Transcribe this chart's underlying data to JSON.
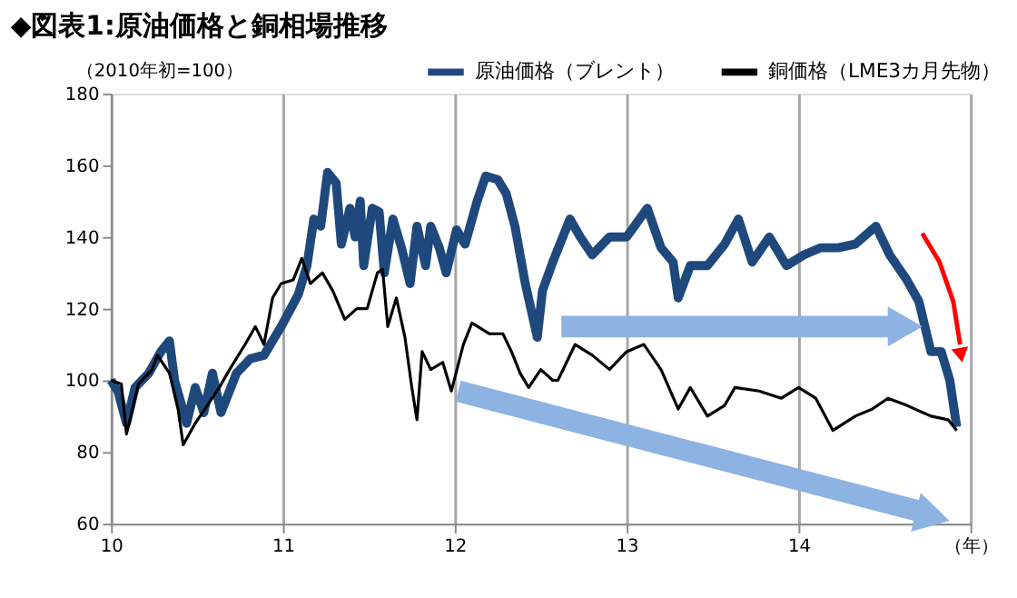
{
  "chart_data": {
    "type": "line",
    "title": "◆図表1:原油価格と銅相場推移",
    "ylabel": "（2010年初=100）",
    "xlim": [
      10,
      15
    ],
    "xticks": [
      10,
      11,
      12,
      13,
      14,
      {
        "value": 15,
        "label": "（年）"
      }
    ],
    "ylim": [
      60,
      180
    ],
    "yticks": [
      60,
      80,
      100,
      120,
      140,
      160,
      180
    ],
    "grid": "x",
    "legend": "top right",
    "series": [
      {
        "name": "原油価格（ブレント）",
        "color": "#1f497d",
        "x": [
          10.0,
          10.04,
          10.09,
          10.14,
          10.22,
          10.29,
          10.34,
          10.37,
          10.44,
          10.49,
          10.54,
          10.59,
          10.64,
          10.73,
          10.81,
          10.89,
          10.99,
          11.09,
          11.14,
          11.18,
          11.22,
          11.26,
          11.31,
          11.34,
          11.39,
          11.42,
          11.45,
          11.47,
          11.52,
          11.56,
          11.59,
          11.64,
          11.69,
          11.74,
          11.78,
          11.83,
          11.86,
          11.91,
          11.95,
          12.01,
          12.06,
          12.13,
          12.18,
          12.25,
          12.3,
          12.35,
          12.41,
          12.48,
          12.51,
          12.57,
          12.67,
          12.73,
          12.8,
          12.9,
          13.0,
          13.12,
          13.2,
          13.27,
          13.3,
          13.37,
          13.47,
          13.57,
          13.65,
          13.73,
          13.83,
          13.93,
          14.03,
          14.13,
          14.23,
          14.33,
          14.45,
          14.53,
          14.63,
          14.7,
          14.77,
          14.83,
          14.88,
          14.92
        ],
        "values": [
          100,
          97,
          88,
          98,
          102,
          108,
          111,
          100,
          88,
          98,
          91,
          102,
          91,
          102,
          106,
          107,
          115,
          124,
          132,
          145,
          143,
          158,
          155,
          138,
          148,
          140,
          150,
          132,
          148,
          147,
          130,
          145,
          137,
          127,
          143,
          132,
          143,
          137,
          130,
          142,
          138,
          150,
          157,
          156,
          152,
          143,
          127,
          112,
          125,
          133,
          145,
          140,
          135,
          140,
          140,
          148,
          137,
          133,
          123,
          132,
          132,
          138,
          145,
          133,
          140,
          132,
          135,
          137,
          137,
          138,
          143,
          135,
          128,
          122,
          108,
          108,
          100,
          87
        ]
      },
      {
        "name": "銅価格（LME3カ月先物）",
        "color": "#000000",
        "x": [
          10.0,
          10.06,
          10.09,
          10.16,
          10.24,
          10.27,
          10.34,
          10.39,
          10.42,
          10.49,
          10.56,
          10.63,
          10.69,
          10.78,
          10.84,
          10.89,
          10.94,
          10.99,
          11.06,
          11.11,
          11.16,
          11.23,
          11.29,
          11.36,
          11.43,
          11.49,
          11.55,
          11.58,
          11.61,
          11.66,
          11.71,
          11.75,
          11.78,
          11.81,
          11.86,
          11.93,
          11.98,
          12.05,
          12.1,
          12.2,
          12.28,
          12.33,
          12.38,
          12.43,
          12.5,
          12.57,
          12.6,
          12.7,
          12.8,
          12.9,
          13.0,
          13.1,
          13.2,
          13.3,
          13.37,
          13.47,
          13.57,
          13.63,
          13.77,
          13.9,
          14.0,
          14.1,
          14.2,
          14.33,
          14.43,
          14.52,
          14.63,
          14.77,
          14.87,
          14.92
        ],
        "values": [
          100,
          99,
          85,
          99,
          103,
          107,
          102,
          92,
          82,
          88,
          93,
          98,
          103,
          110,
          115,
          110,
          123,
          127,
          128,
          134,
          127,
          130,
          125,
          117,
          120,
          120,
          130,
          131,
          115,
          123,
          112,
          98,
          89,
          108,
          103,
          105,
          97,
          110,
          116,
          113,
          113,
          108,
          102,
          98,
          103,
          100,
          100,
          110,
          107,
          103,
          108,
          110,
          103,
          92,
          98,
          90,
          93,
          98,
          97,
          95,
          98,
          95,
          86,
          90,
          92,
          95,
          93,
          90,
          89,
          86
        ]
      }
    ]
  }
}
